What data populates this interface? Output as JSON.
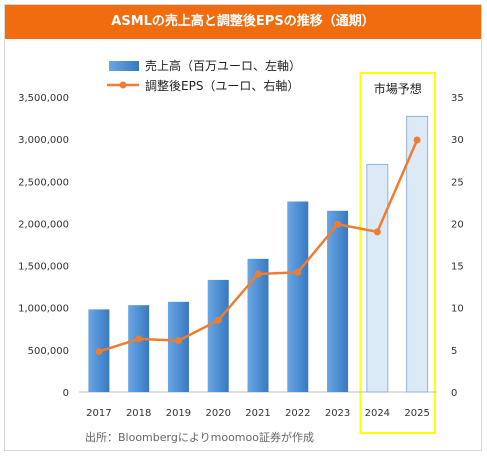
{
  "chart_data": {
    "type": "bar",
    "title": "ASMLの売上高と調整後EPSの推移（通期）",
    "categories": [
      "2017",
      "2018",
      "2019",
      "2020",
      "2021",
      "2022",
      "2023",
      "2024",
      "2025"
    ],
    "series": [
      {
        "name": "売上高（百万ユーロ、左軸）",
        "type": "bar",
        "axis": "left",
        "values": [
          980000,
          1030000,
          1070000,
          1330000,
          1580000,
          2260000,
          2150000,
          2700000,
          3270000
        ]
      },
      {
        "name": "調整後EPS（ユーロ、右軸）",
        "type": "line",
        "axis": "right",
        "values": [
          4.8,
          6.3,
          6.1,
          8.5,
          14.0,
          14.2,
          19.9,
          19.0,
          29.9
        ]
      }
    ],
    "y_left": {
      "min": 0,
      "max": 3500000,
      "ticks": [
        "0",
        "500,000",
        "1,000,000",
        "1,500,000",
        "2,000,000",
        "2,500,000",
        "3,000,000",
        "3,500,000"
      ]
    },
    "y_right": {
      "min": 0,
      "max": 35,
      "ticks": [
        "0",
        "5",
        "10",
        "15",
        "20",
        "25",
        "30",
        "35"
      ]
    },
    "forecast_label": "市場予想",
    "forecast_categories": [
      "2024",
      "2025"
    ],
    "source_note": "出所：Bloombergによりmoomoo証券が作成",
    "colors": {
      "title_bg": "#f16b0f",
      "bar": "#4f90d4",
      "bar_forecast": "#dce9f7",
      "line": "#ed7d31",
      "forecast_box": "#ffff00"
    }
  }
}
